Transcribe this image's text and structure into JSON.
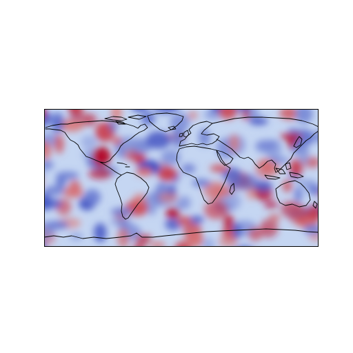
{
  "map": {
    "projection": "plate-carree",
    "extent": {
      "lon": [
        -180,
        180
      ],
      "lat": [
        -90,
        90
      ]
    },
    "colormap": "coolwarm",
    "colors": {
      "low": "#3b4cc0",
      "mid": "#dddddd",
      "high": "#b40426",
      "coastline": "#000000",
      "frame": "#000000"
    },
    "coastlines": true,
    "gridlines": false,
    "colorbar": false
  }
}
